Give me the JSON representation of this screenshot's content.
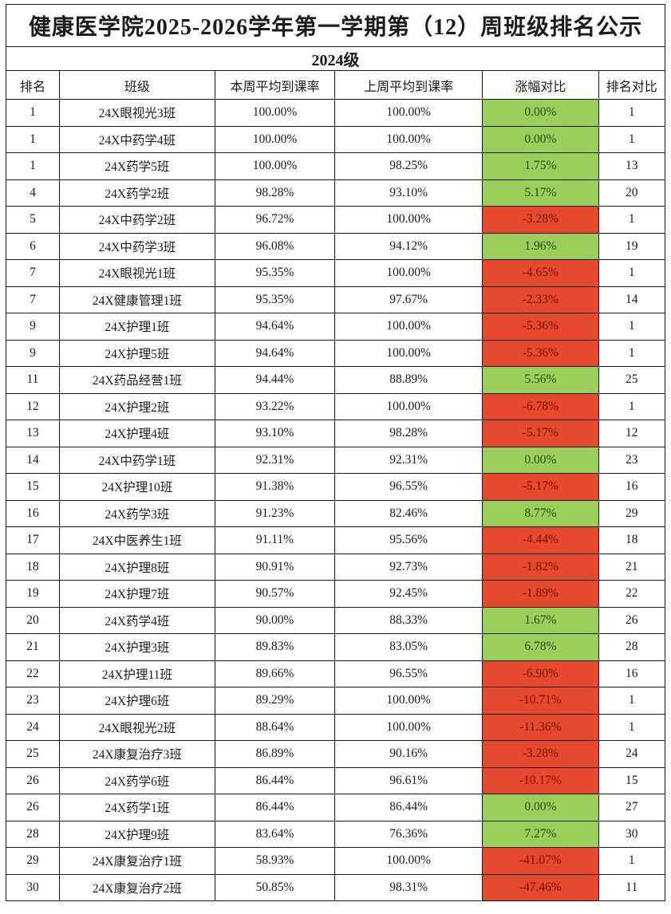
{
  "title": "健康医学院2025-2026学年第一学期第（12）周班级排名公示",
  "grade_label": "2024级",
  "colors": {
    "positive_bg": "#9CCE5C",
    "positive_text": "#2B4A0E",
    "negative_bg": "#E6492B",
    "negative_text": "#70160A",
    "border": "#171717"
  },
  "table": {
    "headers": [
      "排名",
      "班级",
      "本周平均到课率",
      "上周平均到课率",
      "涨幅对比",
      "排名对比"
    ],
    "rows": [
      {
        "rank": "1",
        "class_name": "24X眼视光3班",
        "this_week": "100.00%",
        "last_week": "100.00%",
        "change": "0.00%",
        "rank_compare": "1"
      },
      {
        "rank": "1",
        "class_name": "24X中药学4班",
        "this_week": "100.00%",
        "last_week": "100.00%",
        "change": "0.00%",
        "rank_compare": "1"
      },
      {
        "rank": "1",
        "class_name": "24X药学5班",
        "this_week": "100.00%",
        "last_week": "98.25%",
        "change": "1.75%",
        "rank_compare": "13"
      },
      {
        "rank": "4",
        "class_name": "24X药学2班",
        "this_week": "98.28%",
        "last_week": "93.10%",
        "change": "5.17%",
        "rank_compare": "20"
      },
      {
        "rank": "5",
        "class_name": "24X中药学2班",
        "this_week": "96.72%",
        "last_week": "100.00%",
        "change": "-3.28%",
        "rank_compare": "1"
      },
      {
        "rank": "6",
        "class_name": "24X中药学3班",
        "this_week": "96.08%",
        "last_week": "94.12%",
        "change": "1.96%",
        "rank_compare": "19"
      },
      {
        "rank": "7",
        "class_name": "24X眼视光1班",
        "this_week": "95.35%",
        "last_week": "100.00%",
        "change": "-4.65%",
        "rank_compare": "1"
      },
      {
        "rank": "7",
        "class_name": "24X健康管理1班",
        "this_week": "95.35%",
        "last_week": "97.67%",
        "change": "-2.33%",
        "rank_compare": "14"
      },
      {
        "rank": "9",
        "class_name": "24X护理1班",
        "this_week": "94.64%",
        "last_week": "100.00%",
        "change": "-5.36%",
        "rank_compare": "1"
      },
      {
        "rank": "9",
        "class_name": "24X护理5班",
        "this_week": "94.64%",
        "last_week": "100.00%",
        "change": "-5.36%",
        "rank_compare": "1"
      },
      {
        "rank": "11",
        "class_name": "24X药品经营1班",
        "this_week": "94.44%",
        "last_week": "88.89%",
        "change": "5.56%",
        "rank_compare": "25"
      },
      {
        "rank": "12",
        "class_name": "24X护理2班",
        "this_week": "93.22%",
        "last_week": "100.00%",
        "change": "-6.78%",
        "rank_compare": "1"
      },
      {
        "rank": "13",
        "class_name": "24X护理4班",
        "this_week": "93.10%",
        "last_week": "98.28%",
        "change": "-5.17%",
        "rank_compare": "12"
      },
      {
        "rank": "14",
        "class_name": "24X中药学1班",
        "this_week": "92.31%",
        "last_week": "92.31%",
        "change": "0.00%",
        "rank_compare": "23"
      },
      {
        "rank": "15",
        "class_name": "24X护理10班",
        "this_week": "91.38%",
        "last_week": "96.55%",
        "change": "-5.17%",
        "rank_compare": "16"
      },
      {
        "rank": "16",
        "class_name": "24X药学3班",
        "this_week": "91.23%",
        "last_week": "82.46%",
        "change": "8.77%",
        "rank_compare": "29"
      },
      {
        "rank": "17",
        "class_name": "24X中医养生1班",
        "this_week": "91.11%",
        "last_week": "95.56%",
        "change": "-4.44%",
        "rank_compare": "18"
      },
      {
        "rank": "18",
        "class_name": "24X护理8班",
        "this_week": "90.91%",
        "last_week": "92.73%",
        "change": "-1.82%",
        "rank_compare": "21"
      },
      {
        "rank": "19",
        "class_name": "24X护理7班",
        "this_week": "90.57%",
        "last_week": "92.45%",
        "change": "-1.89%",
        "rank_compare": "22"
      },
      {
        "rank": "20",
        "class_name": "24X药学4班",
        "this_week": "90.00%",
        "last_week": "88.33%",
        "change": "1.67%",
        "rank_compare": "26"
      },
      {
        "rank": "21",
        "class_name": "24X护理3班",
        "this_week": "89.83%",
        "last_week": "83.05%",
        "change": "6.78%",
        "rank_compare": "28"
      },
      {
        "rank": "22",
        "class_name": "24X护理11班",
        "this_week": "89.66%",
        "last_week": "96.55%",
        "change": "-6.90%",
        "rank_compare": "16"
      },
      {
        "rank": "23",
        "class_name": "24X护理6班",
        "this_week": "89.29%",
        "last_week": "100.00%",
        "change": "-10.71%",
        "rank_compare": "1"
      },
      {
        "rank": "24",
        "class_name": "24X眼视光2班",
        "this_week": "88.64%",
        "last_week": "100.00%",
        "change": "-11.36%",
        "rank_compare": "1"
      },
      {
        "rank": "25",
        "class_name": "24X康复治疗3班",
        "this_week": "86.89%",
        "last_week": "90.16%",
        "change": "-3.28%",
        "rank_compare": "24"
      },
      {
        "rank": "26",
        "class_name": "24X药学6班",
        "this_week": "86.44%",
        "last_week": "96.61%",
        "change": "-10.17%",
        "rank_compare": "15"
      },
      {
        "rank": "26",
        "class_name": "24X药学1班",
        "this_week": "86.44%",
        "last_week": "86.44%",
        "change": "0.00%",
        "rank_compare": "27"
      },
      {
        "rank": "28",
        "class_name": "24X护理9班",
        "this_week": "83.64%",
        "last_week": "76.36%",
        "change": "7.27%",
        "rank_compare": "30"
      },
      {
        "rank": "29",
        "class_name": "24X康复治疗1班",
        "this_week": "58.93%",
        "last_week": "100.00%",
        "change": "-41.07%",
        "rank_compare": "1"
      },
      {
        "rank": "30",
        "class_name": "24X康复治疗2班",
        "this_week": "50.85%",
        "last_week": "98.31%",
        "change": "-47.46%",
        "rank_compare": "11"
      }
    ]
  }
}
